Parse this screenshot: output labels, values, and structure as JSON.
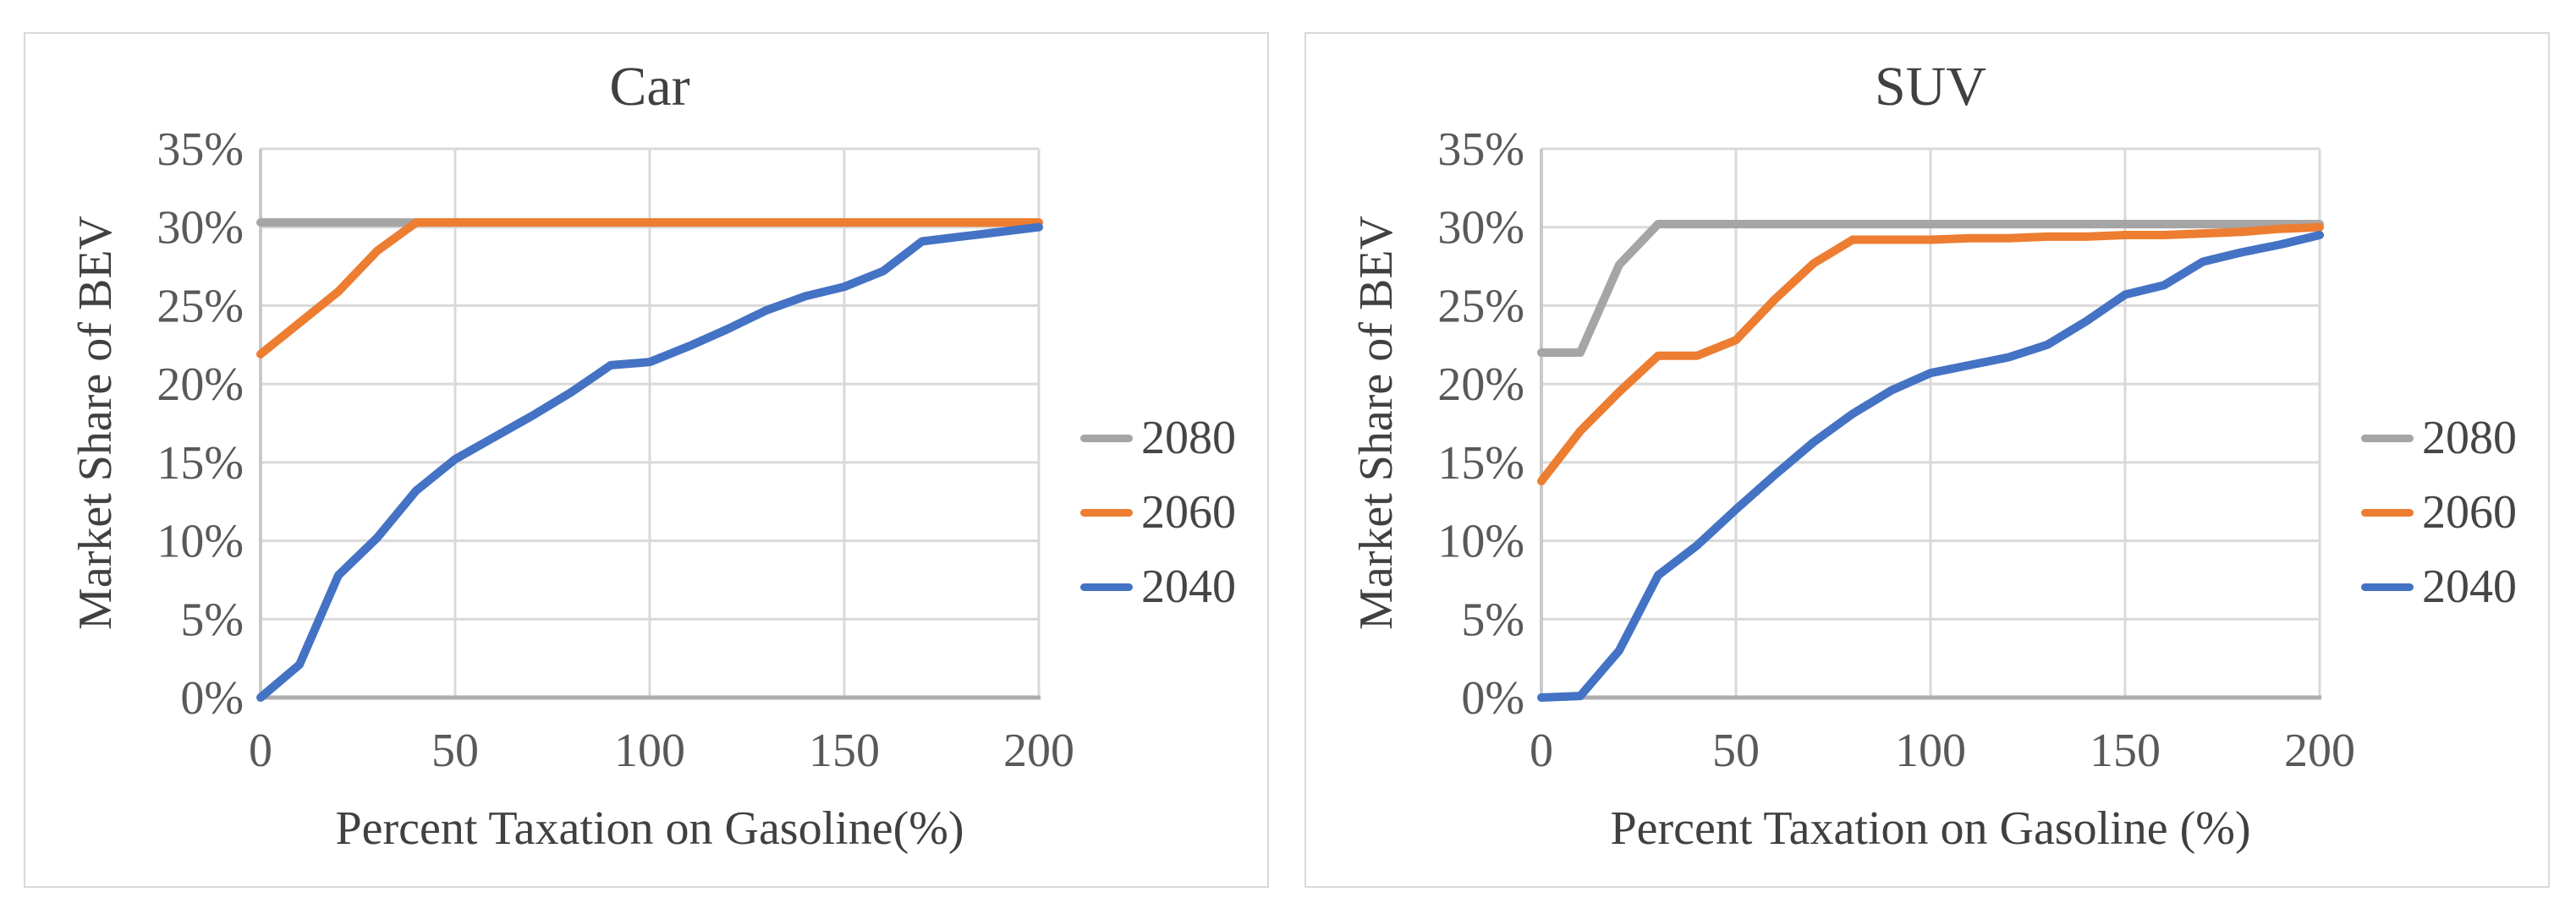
{
  "figure": {
    "background": "#ffffff",
    "panel_count": 2
  },
  "colors": {
    "series_2080": "#a5a5a5",
    "series_2060": "#ed7d31",
    "series_2040": "#4472c4",
    "gridline": "#d9d9d9",
    "axis_line_left": "#c9c9c9",
    "axis_line_bottom": "#adadad",
    "tick_text": "#595959",
    "title_text": "#404040",
    "panel_border": "#d9d9d9"
  },
  "chart_data": [
    {
      "type": "line",
      "title": "Car",
      "ylabel": "Market Share of BEV",
      "xlabel": "Percent Taxation on Gasoline(%)",
      "xlim": [
        0,
        200
      ],
      "ylim": [
        0,
        35
      ],
      "grid": true,
      "legend_position": "right",
      "x_ticks": [
        "0",
        "50",
        "100",
        "150",
        "200"
      ],
      "y_ticks": [
        "0%",
        "5%",
        "10%",
        "15%",
        "20%",
        "25%",
        "30%",
        "35%"
      ],
      "x": [
        0,
        10,
        20,
        30,
        40,
        50,
        60,
        70,
        80,
        90,
        100,
        110,
        120,
        130,
        140,
        150,
        160,
        170,
        180,
        190,
        200
      ],
      "series": [
        {
          "name": "2080",
          "color_key": "series_2080",
          "values": [
            30.3,
            30.3,
            30.3,
            30.3,
            30.3,
            30.3,
            30.3,
            30.3,
            30.3,
            30.3,
            30.3,
            30.3,
            30.3,
            30.3,
            30.3,
            30.3,
            30.3,
            30.3,
            30.3,
            30.3,
            30.3
          ]
        },
        {
          "name": "2060",
          "color_key": "series_2060",
          "values": [
            21.9,
            23.9,
            25.9,
            28.5,
            30.3,
            30.3,
            30.3,
            30.3,
            30.3,
            30.3,
            30.3,
            30.3,
            30.3,
            30.3,
            30.3,
            30.3,
            30.3,
            30.3,
            30.3,
            30.3,
            30.3
          ]
        },
        {
          "name": "2040",
          "color_key": "series_2040",
          "values": [
            0,
            2.1,
            7.8,
            10.2,
            13.2,
            15.2,
            16.6,
            18.0,
            19.5,
            21.2,
            21.4,
            22.4,
            23.5,
            24.7,
            25.6,
            26.2,
            27.2,
            29.1,
            29.4,
            29.7,
            30.0
          ]
        }
      ]
    },
    {
      "type": "line",
      "title": "SUV",
      "ylabel": "Market Share of BEV",
      "xlabel": "Percent Taxation on Gasoline (%)",
      "xlim": [
        0,
        200
      ],
      "ylim": [
        0,
        35
      ],
      "grid": true,
      "legend_position": "right",
      "x_ticks": [
        "0",
        "50",
        "100",
        "150",
        "200"
      ],
      "y_ticks": [
        "0%",
        "5%",
        "10%",
        "15%",
        "20%",
        "25%",
        "30%",
        "35%"
      ],
      "x": [
        0,
        10,
        20,
        30,
        40,
        50,
        60,
        70,
        80,
        90,
        100,
        110,
        120,
        130,
        140,
        150,
        160,
        170,
        180,
        190,
        200
      ],
      "series": [
        {
          "name": "2080",
          "color_key": "series_2080",
          "values": [
            22.0,
            22.0,
            27.6,
            30.2,
            30.2,
            30.2,
            30.2,
            30.2,
            30.2,
            30.2,
            30.2,
            30.2,
            30.2,
            30.2,
            30.2,
            30.2,
            30.2,
            30.2,
            30.2,
            30.2,
            30.2
          ]
        },
        {
          "name": "2060",
          "color_key": "series_2060",
          "values": [
            13.8,
            17.0,
            19.5,
            21.8,
            21.8,
            22.8,
            25.4,
            27.7,
            29.2,
            29.2,
            29.2,
            29.3,
            29.3,
            29.4,
            29.4,
            29.5,
            29.5,
            29.6,
            29.7,
            29.9,
            30.0
          ]
        },
        {
          "name": "2040",
          "color_key": "series_2040",
          "values": [
            0,
            0.1,
            3.0,
            7.8,
            9.7,
            12.0,
            14.2,
            16.3,
            18.1,
            19.6,
            20.7,
            21.2,
            21.7,
            22.5,
            24.0,
            25.7,
            26.3,
            27.8,
            28.4,
            28.9,
            29.5
          ]
        }
      ]
    }
  ]
}
